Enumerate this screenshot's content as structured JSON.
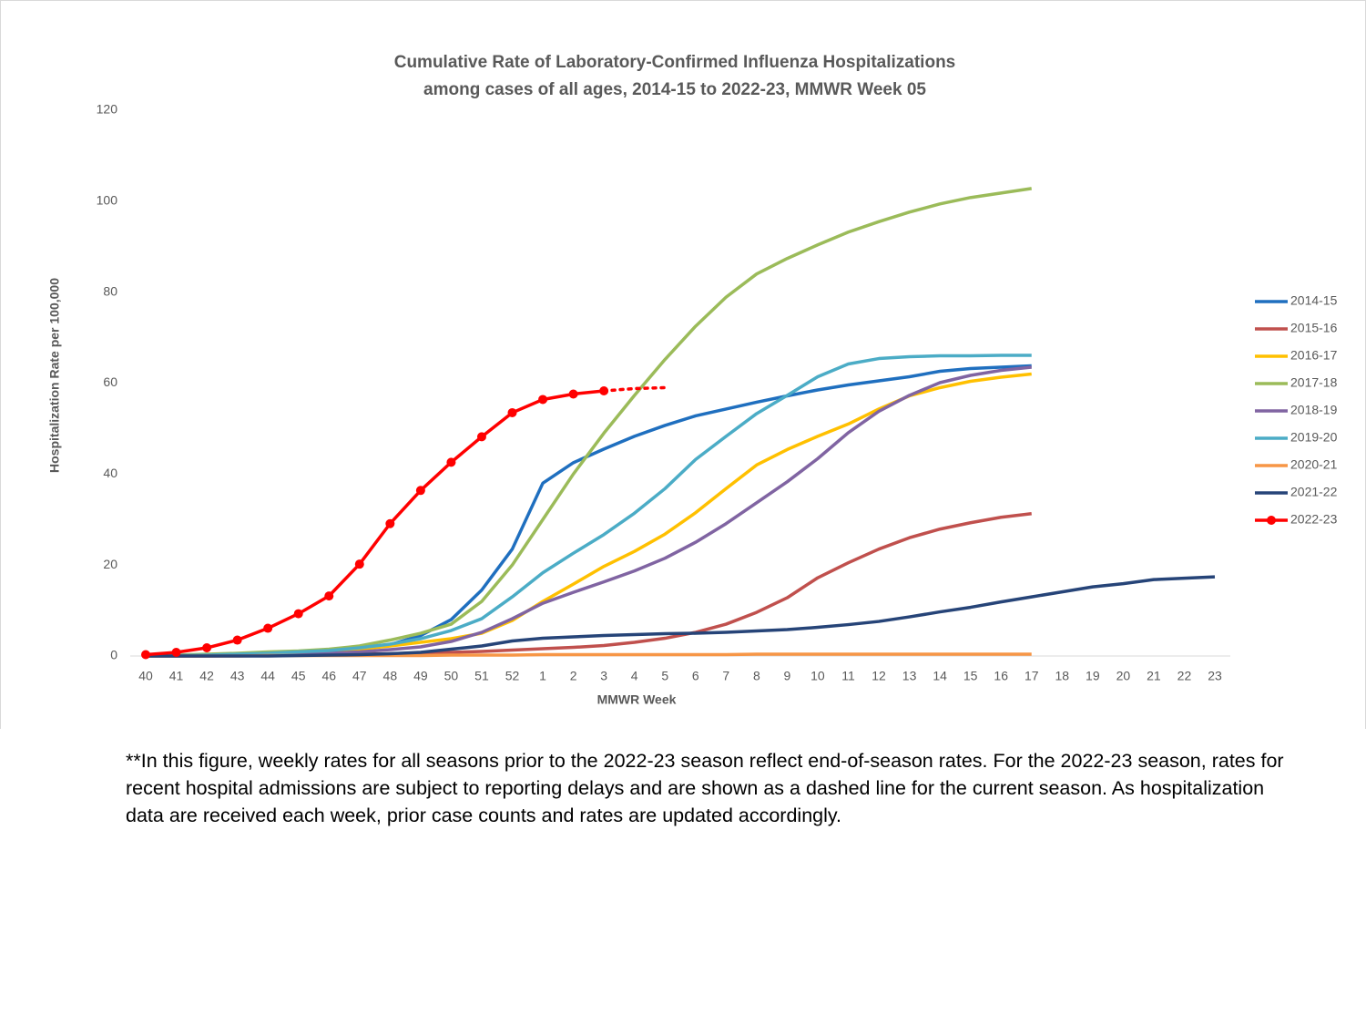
{
  "chart_data": {
    "type": "line",
    "title": [
      "Cumulative Rate of Laboratory-Confirmed Influenza Hospitalizations",
      "among cases of all ages, 2014-15 to 2022-23, MMWR Week 05"
    ],
    "x_label": "MMWR Week",
    "y_label": "Hospitalization Rate per 100,000",
    "categories": [
      "40",
      "41",
      "42",
      "43",
      "44",
      "45",
      "46",
      "47",
      "48",
      "49",
      "50",
      "51",
      "52",
      "1",
      "2",
      "3",
      "4",
      "5",
      "6",
      "7",
      "8",
      "9",
      "10",
      "11",
      "12",
      "13",
      "14",
      "15",
      "16",
      "17",
      "18",
      "19",
      "20",
      "21",
      "22",
      "23"
    ],
    "ylim": [
      0,
      120
    ],
    "yticks": [
      0,
      20,
      40,
      60,
      80,
      100,
      120
    ],
    "grid": false,
    "legend": "right",
    "series": [
      {
        "name": "2014-15",
        "color": "#1f6fbf",
        "values": [
          0,
          0.1,
          0.2,
          0.3,
          0.5,
          0.7,
          1.0,
          1.5,
          2.5,
          4.5,
          8,
          14.5,
          23.5,
          38,
          42.5,
          45.5,
          48.3,
          50.7,
          52.8,
          54.3,
          55.8,
          57.2,
          58.5,
          59.6,
          60.5,
          61.4,
          62.6,
          63.2,
          63.5,
          63.8,
          null,
          null,
          null,
          null,
          null,
          null
        ]
      },
      {
        "name": "2015-16",
        "color": "#c0504d",
        "values": [
          0,
          0,
          0,
          0.1,
          0.1,
          0.2,
          0.3,
          0.4,
          0.5,
          0.6,
          0.8,
          1.0,
          1.3,
          1.6,
          1.9,
          2.3,
          3.0,
          3.9,
          5.2,
          7.0,
          9.6,
          12.8,
          17.2,
          20.5,
          23.5,
          26.0,
          27.9,
          29.3,
          30.5,
          31.3,
          null,
          null,
          null,
          null,
          null,
          null
        ]
      },
      {
        "name": "2016-17",
        "color": "#ffc000",
        "values": [
          0,
          0.1,
          0.2,
          0.3,
          0.5,
          0.7,
          1.0,
          1.5,
          2.2,
          3.0,
          3.8,
          5.0,
          7.8,
          12,
          15.8,
          19.7,
          23,
          26.8,
          31.5,
          36.8,
          42,
          45.4,
          48.3,
          51,
          54.3,
          57.2,
          59,
          60.4,
          61.3,
          62,
          null,
          null,
          null,
          null,
          null,
          null
        ]
      },
      {
        "name": "2017-18",
        "color": "#9bbb59",
        "values": [
          0,
          0.2,
          0.4,
          0.6,
          0.9,
          1.1,
          1.5,
          2.2,
          3.5,
          5.0,
          7.0,
          12,
          20,
          30,
          40,
          49,
          57.3,
          65.2,
          72.5,
          78.9,
          84,
          87.4,
          90.4,
          93.2,
          95.5,
          97.6,
          99.4,
          100.8,
          101.8,
          102.8,
          null,
          null,
          null,
          null,
          null,
          null
        ]
      },
      {
        "name": "2018-19",
        "color": "#8064a2",
        "values": [
          0,
          0,
          0.1,
          0.2,
          0.3,
          0.4,
          0.6,
          0.9,
          1.4,
          2.0,
          3.2,
          5.2,
          8.2,
          11.6,
          14,
          16.3,
          18.7,
          21.5,
          25,
          29.1,
          33.7,
          38.3,
          43.4,
          49.1,
          53.8,
          57.3,
          60.1,
          61.7,
          62.8,
          63.5,
          null,
          null,
          null,
          null,
          null,
          null
        ]
      },
      {
        "name": "2019-20",
        "color": "#4bacc6",
        "values": [
          0,
          0.1,
          0.2,
          0.4,
          0.6,
          0.9,
          1.2,
          1.8,
          2.6,
          3.8,
          5.6,
          8.2,
          13,
          18.3,
          22.6,
          26.7,
          31.4,
          36.8,
          43.2,
          48.3,
          53.3,
          57.3,
          61.4,
          64.2,
          65.4,
          65.8,
          66,
          66,
          66.1,
          66.1,
          null,
          null,
          null,
          null,
          null,
          null
        ]
      },
      {
        "name": "2020-21",
        "color": "#f79646",
        "values": [
          0,
          0,
          0,
          0,
          0.1,
          0.1,
          0.1,
          0.1,
          0.1,
          0.1,
          0.2,
          0.2,
          0.2,
          0.3,
          0.3,
          0.3,
          0.3,
          0.3,
          0.3,
          0.3,
          0.4,
          0.4,
          0.4,
          0.4,
          0.4,
          0.4,
          0.4,
          0.4,
          0.4,
          0.4,
          null,
          null,
          null,
          null,
          null,
          null
        ]
      },
      {
        "name": "2021-22",
        "color": "#264478",
        "values": [
          0,
          0,
          0,
          0,
          0,
          0.1,
          0.2,
          0.3,
          0.5,
          0.8,
          1.5,
          2.2,
          3.3,
          3.9,
          4.2,
          4.5,
          4.7,
          4.9,
          5.0,
          5.2,
          5.5,
          5.8,
          6.3,
          6.9,
          7.6,
          8.6,
          9.7,
          10.7,
          11.9,
          13.0,
          14.1,
          15.2,
          15.9,
          16.8,
          17.1,
          17.4
        ]
      },
      {
        "name": "2022-23",
        "color": "#ff0000",
        "markers": true,
        "values": [
          0.3,
          0.8,
          1.8,
          3.5,
          6.1,
          9.3,
          13.2,
          20.2,
          29.1,
          36.4,
          42.6,
          48.2,
          53.5,
          56.4,
          57.6,
          58.3,
          null,
          null,
          null,
          null,
          null,
          null,
          null,
          null,
          null,
          null,
          null,
          null,
          null,
          null,
          null,
          null,
          null,
          null,
          null,
          null
        ],
        "dashed_values": [
          null,
          null,
          null,
          null,
          null,
          null,
          null,
          null,
          null,
          null,
          null,
          null,
          null,
          null,
          null,
          58.3,
          58.8,
          59.0,
          null,
          null,
          null,
          null,
          null,
          null,
          null,
          null,
          null,
          null,
          null,
          null,
          null,
          null,
          null,
          null,
          null,
          null
        ]
      }
    ]
  },
  "footnote": "**In this figure, weekly rates for all seasons prior to the 2022-23 season reflect end-of-season rates. For the 2022-23 season, rates for recent hospital admissions are subject to reporting delays and are shown as a dashed line for the current season. As hospitalization data are received each week, prior case counts and rates are updated accordingly."
}
